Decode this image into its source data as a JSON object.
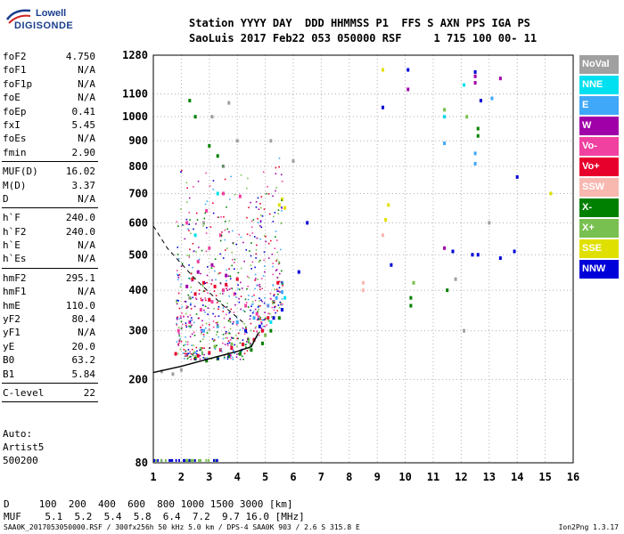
{
  "logo": {
    "line1": "Lowell",
    "line2": "DIGISONDE"
  },
  "header": {
    "line1": "Station YYYY DAY  DDD HHMMSS P1  FFS S AXN PPS IGA PS",
    "line2": "SaoLuis 2017 Feb22 053 050000 RSF     1 715 100 00- 11"
  },
  "params": {
    "group1": [
      {
        "key": "foF2",
        "value": "4.750"
      },
      {
        "key": "foF1",
        "value": "N/A"
      },
      {
        "key": "foF1p",
        "value": "N/A"
      },
      {
        "key": "foE",
        "value": "N/A"
      },
      {
        "key": "foEp",
        "value": "0.41"
      },
      {
        "key": "fxI",
        "value": "5.45"
      },
      {
        "key": "foEs",
        "value": "N/A"
      },
      {
        "key": "fmin",
        "value": "2.90"
      }
    ],
    "group2": [
      {
        "key": "MUF(D)",
        "value": "16.02"
      },
      {
        "key": "M(D)",
        "value": "3.37"
      },
      {
        "key": "D",
        "value": "N/A"
      }
    ],
    "group3": [
      {
        "key": "h`F",
        "value": "240.0"
      },
      {
        "key": "h`F2",
        "value": "240.0"
      },
      {
        "key": "h`E",
        "value": "N/A"
      },
      {
        "key": "h`Es",
        "value": "N/A"
      }
    ],
    "group4": [
      {
        "key": "hmF2",
        "value": "295.1"
      },
      {
        "key": "hmF1",
        "value": "N/A"
      },
      {
        "key": "hmE",
        "value": "110.0"
      },
      {
        "key": "yF2",
        "value": "80.4"
      },
      {
        "key": "yF1",
        "value": "N/A"
      },
      {
        "key": "yE",
        "value": "20.0"
      },
      {
        "key": "B0",
        "value": "63.2"
      },
      {
        "key": "B1",
        "value": "5.84"
      }
    ],
    "group5": [
      {
        "key": "C-level",
        "value": "22"
      }
    ]
  },
  "auto": {
    "line1": "Auto:",
    "line2": "Artist5",
    "line3": "500200"
  },
  "legend": [
    {
      "label": "NoVal",
      "color": "#a0a0a0"
    },
    {
      "label": "NNE",
      "color": "#00e0f0"
    },
    {
      "label": "E",
      "color": "#40a8f8"
    },
    {
      "label": "W",
      "color": "#a000a8"
    },
    {
      "label": "Vo-",
      "color": "#f040a0"
    },
    {
      "label": "Vo+",
      "color": "#e8002c"
    },
    {
      "label": "SSW",
      "color": "#f8b8b0"
    },
    {
      "label": "X-",
      "color": "#008000"
    },
    {
      "label": "X+",
      "color": "#78c050"
    },
    {
      "label": "SSE",
      "color": "#e0e000"
    },
    {
      "label": "NNW",
      "color": "#0000d8"
    }
  ],
  "footer": {
    "d_line": "D     100  200  400  600  800 1000 1500 3000 [km]",
    "muf_line": "MUF    5.1  5.2  5.4  5.8  6.4  7.2  9.7 16.0 [MHz]",
    "file_line": "SAA0K_2017053050000.RSF / 300fx256h 50 kHz 5.0 km / DPS-4 SAA0K 903 / 2.6 S 315.8 E",
    "version": "Ion2Png 1.3.17"
  },
  "chart_data": {
    "type": "scatter",
    "title": "",
    "xlabel": "",
    "ylabel": "",
    "x_ticks": [
      1,
      2,
      3,
      4,
      5,
      6,
      7,
      8,
      9,
      10,
      11,
      12,
      13,
      14,
      15,
      16
    ],
    "y_ticks": [
      80,
      200,
      300,
      400,
      500,
      600,
      700,
      800,
      900,
      1000,
      1100,
      1280
    ],
    "xlim": [
      1,
      16
    ],
    "y_scale": "sqrt-like (non-linear height scale, 80–1280 km)",
    "ylim": [
      80,
      1280
    ],
    "grid": true,
    "series": [
      {
        "name": "Vo+",
        "points": [
          [
            1.8,
            250
          ],
          [
            2.2,
            248
          ],
          [
            2.6,
            246
          ],
          [
            3.0,
            252
          ],
          [
            3.4,
            258
          ],
          [
            3.8,
            262
          ],
          [
            4.2,
            270
          ],
          [
            4.6,
            280
          ],
          [
            4.9,
            300
          ],
          [
            5.1,
            330
          ],
          [
            5.3,
            370
          ],
          [
            5.45,
            420
          ],
          [
            2.4,
            430
          ],
          [
            2.8,
            420
          ],
          [
            3.2,
            410
          ],
          [
            3.6,
            415
          ],
          [
            4.0,
            430
          ],
          [
            2.5,
            390
          ],
          [
            3.0,
            375
          ]
        ]
      },
      {
        "name": "Vo-",
        "points": [
          [
            1.9,
            300
          ],
          [
            2.3,
            320
          ],
          [
            2.7,
            350
          ],
          [
            3.1,
            370
          ],
          [
            3.5,
            400
          ],
          [
            3.9,
            390
          ],
          [
            4.3,
            360
          ],
          [
            4.7,
            340
          ],
          [
            2.6,
            480
          ],
          [
            3.0,
            520
          ],
          [
            3.4,
            560
          ],
          [
            2.2,
            600
          ],
          [
            2.9,
            640
          ],
          [
            3.5,
            700
          ],
          [
            4.1,
            690
          ]
        ]
      },
      {
        "name": "X-",
        "points": [
          [
            2.5,
            240
          ],
          [
            2.9,
            236
          ],
          [
            3.3,
            240
          ],
          [
            3.7,
            245
          ],
          [
            4.1,
            250
          ],
          [
            4.5,
            258
          ],
          [
            4.9,
            272
          ],
          [
            5.2,
            300
          ],
          [
            5.5,
            330
          ],
          [
            10.2,
            360
          ],
          [
            10.2,
            380
          ],
          [
            11.5,
            400
          ],
          [
            12.6,
            920
          ],
          [
            12.6,
            950
          ],
          [
            2.3,
            1070
          ],
          [
            2.5,
            1000
          ],
          [
            3.0,
            880
          ],
          [
            3.3,
            840
          ]
        ]
      },
      {
        "name": "X+",
        "points": [
          [
            2.7,
            260
          ],
          [
            3.2,
            265
          ],
          [
            3.8,
            270
          ],
          [
            4.4,
            280
          ],
          [
            5.0,
            290
          ],
          [
            10.3,
            420
          ],
          [
            12.2,
            1000
          ],
          [
            11.4,
            1030
          ]
        ]
      },
      {
        "name": "E",
        "points": [
          [
            2.8,
            300
          ],
          [
            3.3,
            310
          ],
          [
            4.0,
            320
          ],
          [
            4.6,
            330
          ],
          [
            5.1,
            360
          ],
          [
            5.6,
            395
          ],
          [
            5.6,
            420
          ],
          [
            5.4,
            380
          ],
          [
            12.5,
            810
          ],
          [
            12.5,
            850
          ],
          [
            11.4,
            890
          ],
          [
            13.1,
            1080
          ]
        ]
      },
      {
        "name": "NNE",
        "points": [
          [
            5.2,
            320
          ],
          [
            5.6,
            350
          ],
          [
            5.7,
            380
          ],
          [
            2.5,
            560
          ],
          [
            3.3,
            700
          ],
          [
            11.4,
            1000
          ],
          [
            12.1,
            1140
          ]
        ]
      },
      {
        "name": "W",
        "points": [
          [
            2.2,
            410
          ],
          [
            2.6,
            450
          ],
          [
            3.1,
            470
          ],
          [
            3.6,
            440
          ],
          [
            10.1,
            1120
          ],
          [
            12.5,
            1150
          ],
          [
            12.5,
            1180
          ],
          [
            13.4,
            1170
          ],
          [
            11.4,
            520
          ]
        ]
      },
      {
        "name": "NNW",
        "points": [
          [
            4.3,
            300
          ],
          [
            4.8,
            310
          ],
          [
            5.3,
            330
          ],
          [
            5.6,
            350
          ],
          [
            6.2,
            450
          ],
          [
            6.5,
            600
          ],
          [
            9.2,
            1040
          ],
          [
            9.5,
            470
          ],
          [
            11.7,
            510
          ],
          [
            12.4,
            500
          ],
          [
            12.6,
            500
          ],
          [
            13.4,
            490
          ],
          [
            13.9,
            510
          ],
          [
            14.0,
            760
          ],
          [
            12.5,
            1200
          ],
          [
            10.1,
            1210
          ],
          [
            12.7,
            1070
          ]
        ]
      },
      {
        "name": "SSE",
        "points": [
          [
            5.5,
            660
          ],
          [
            5.6,
            680
          ],
          [
            5.7,
            650
          ],
          [
            9.3,
            610
          ],
          [
            9.4,
            660
          ],
          [
            9.2,
            1210
          ],
          [
            15.2,
            700
          ]
        ]
      },
      {
        "name": "SSW",
        "points": [
          [
            8.5,
            400
          ],
          [
            8.5,
            420
          ],
          [
            9.2,
            560
          ]
        ]
      },
      {
        "name": "NoVal",
        "points": [
          [
            1.3,
            215
          ],
          [
            1.7,
            210
          ],
          [
            2.0,
            218
          ],
          [
            2.3,
            380
          ],
          [
            2.8,
            600
          ],
          [
            3.5,
            800
          ],
          [
            4.0,
            900
          ],
          [
            3.1,
            1000
          ],
          [
            3.7,
            1060
          ],
          [
            5.2,
            900
          ],
          [
            6.0,
            820
          ],
          [
            11.8,
            430
          ],
          [
            12.1,
            300
          ],
          [
            13.0,
            600
          ]
        ]
      }
    ],
    "profile_curve": [
      [
        1.0,
        213
      ],
      [
        2.0,
        225
      ],
      [
        3.0,
        240
      ],
      [
        4.0,
        255
      ],
      [
        4.5,
        265
      ],
      [
        4.75,
        295
      ]
    ]
  }
}
